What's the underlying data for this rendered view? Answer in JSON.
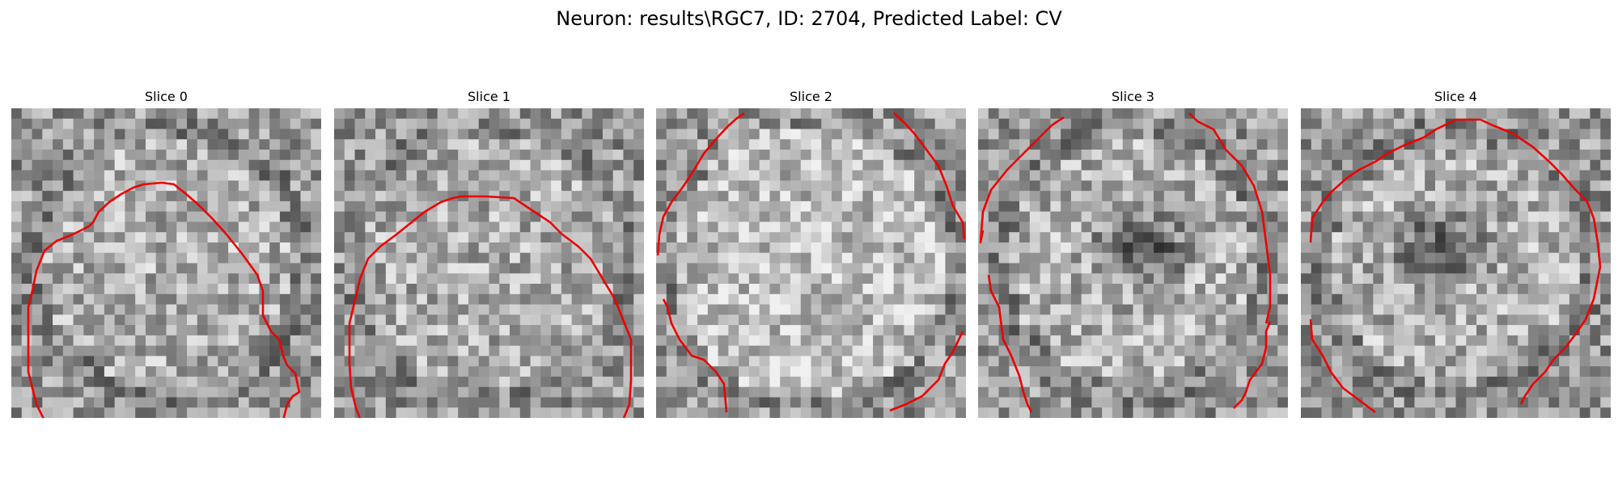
{
  "figure": {
    "title": "Neuron: results\\RGC7, ID: 2704, Predicted Label: CV"
  },
  "panels": [
    {
      "label": "Slice 0"
    },
    {
      "label": "Slice 1"
    },
    {
      "label": "Slice 2"
    },
    {
      "label": "Slice 3"
    },
    {
      "label": "Slice 4"
    }
  ],
  "colors": {
    "contour": "#ee0000"
  }
}
